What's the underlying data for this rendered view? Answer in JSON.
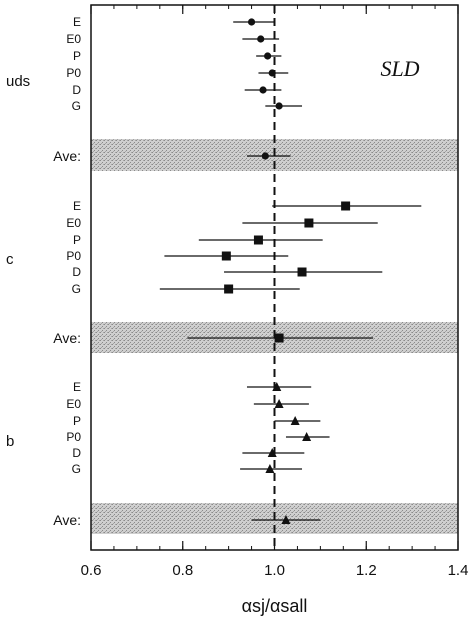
{
  "chart_data": {
    "type": "scatter",
    "experiment_label": "SLD",
    "xlabel": "αsj/αsall",
    "xlim": [
      0.6,
      1.4
    ],
    "xticks": [
      0.6,
      0.8,
      1.0,
      1.2,
      1.4
    ],
    "xtick_labels": [
      "0.6",
      "0.8",
      "1.0",
      "1.2",
      "1.4"
    ],
    "reference_line": 1.0,
    "ave_label": "Ave:",
    "groups": [
      {
        "name": "uds",
        "marker": "circle",
        "points": [
          {
            "label": "E",
            "value": 0.95,
            "err_low": 0.91,
            "err_high": 1.0
          },
          {
            "label": "E0",
            "value": 0.97,
            "err_low": 0.93,
            "err_high": 1.01
          },
          {
            "label": "P",
            "value": 0.985,
            "err_low": 0.96,
            "err_high": 1.015
          },
          {
            "label": "P0",
            "value": 0.995,
            "err_low": 0.965,
            "err_high": 1.03
          },
          {
            "label": "D",
            "value": 0.975,
            "err_low": 0.935,
            "err_high": 1.015
          },
          {
            "label": "G",
            "value": 1.01,
            "err_low": 0.98,
            "err_high": 1.06
          }
        ],
        "ave": {
          "value": 0.98,
          "err_low": 0.94,
          "err_high": 1.035
        }
      },
      {
        "name": "c",
        "marker": "square",
        "points": [
          {
            "label": "E",
            "value": 1.155,
            "err_low": 0.995,
            "err_high": 1.32
          },
          {
            "label": "E0",
            "value": 1.075,
            "err_low": 0.93,
            "err_high": 1.225
          },
          {
            "label": "P",
            "value": 0.965,
            "err_low": 0.835,
            "err_high": 1.105
          },
          {
            "label": "P0",
            "value": 0.895,
            "err_low": 0.76,
            "err_high": 1.03
          },
          {
            "label": "D",
            "value": 1.06,
            "err_low": 0.89,
            "err_high": 1.235
          },
          {
            "label": "G",
            "value": 0.9,
            "err_low": 0.75,
            "err_high": 1.055
          }
        ],
        "ave": {
          "value": 1.01,
          "err_low": 0.81,
          "err_high": 1.215
        }
      },
      {
        "name": "b",
        "marker": "triangle",
        "points": [
          {
            "label": "E",
            "value": 1.005,
            "err_low": 0.94,
            "err_high": 1.08
          },
          {
            "label": "E0",
            "value": 1.01,
            "err_low": 0.955,
            "err_high": 1.075
          },
          {
            "label": "P",
            "value": 1.045,
            "err_low": 1.0,
            "err_high": 1.1
          },
          {
            "label": "P0",
            "value": 1.07,
            "err_low": 1.025,
            "err_high": 1.12
          },
          {
            "label": "D",
            "value": 0.995,
            "err_low": 0.93,
            "err_high": 1.065
          },
          {
            "label": "G",
            "value": 0.99,
            "err_low": 0.925,
            "err_high": 1.06
          }
        ],
        "ave": {
          "value": 1.025,
          "err_low": 0.95,
          "err_high": 1.1
        }
      }
    ],
    "colors": {
      "marker": "#111111",
      "band": "#b8b8b8",
      "frame": "#111111"
    }
  }
}
